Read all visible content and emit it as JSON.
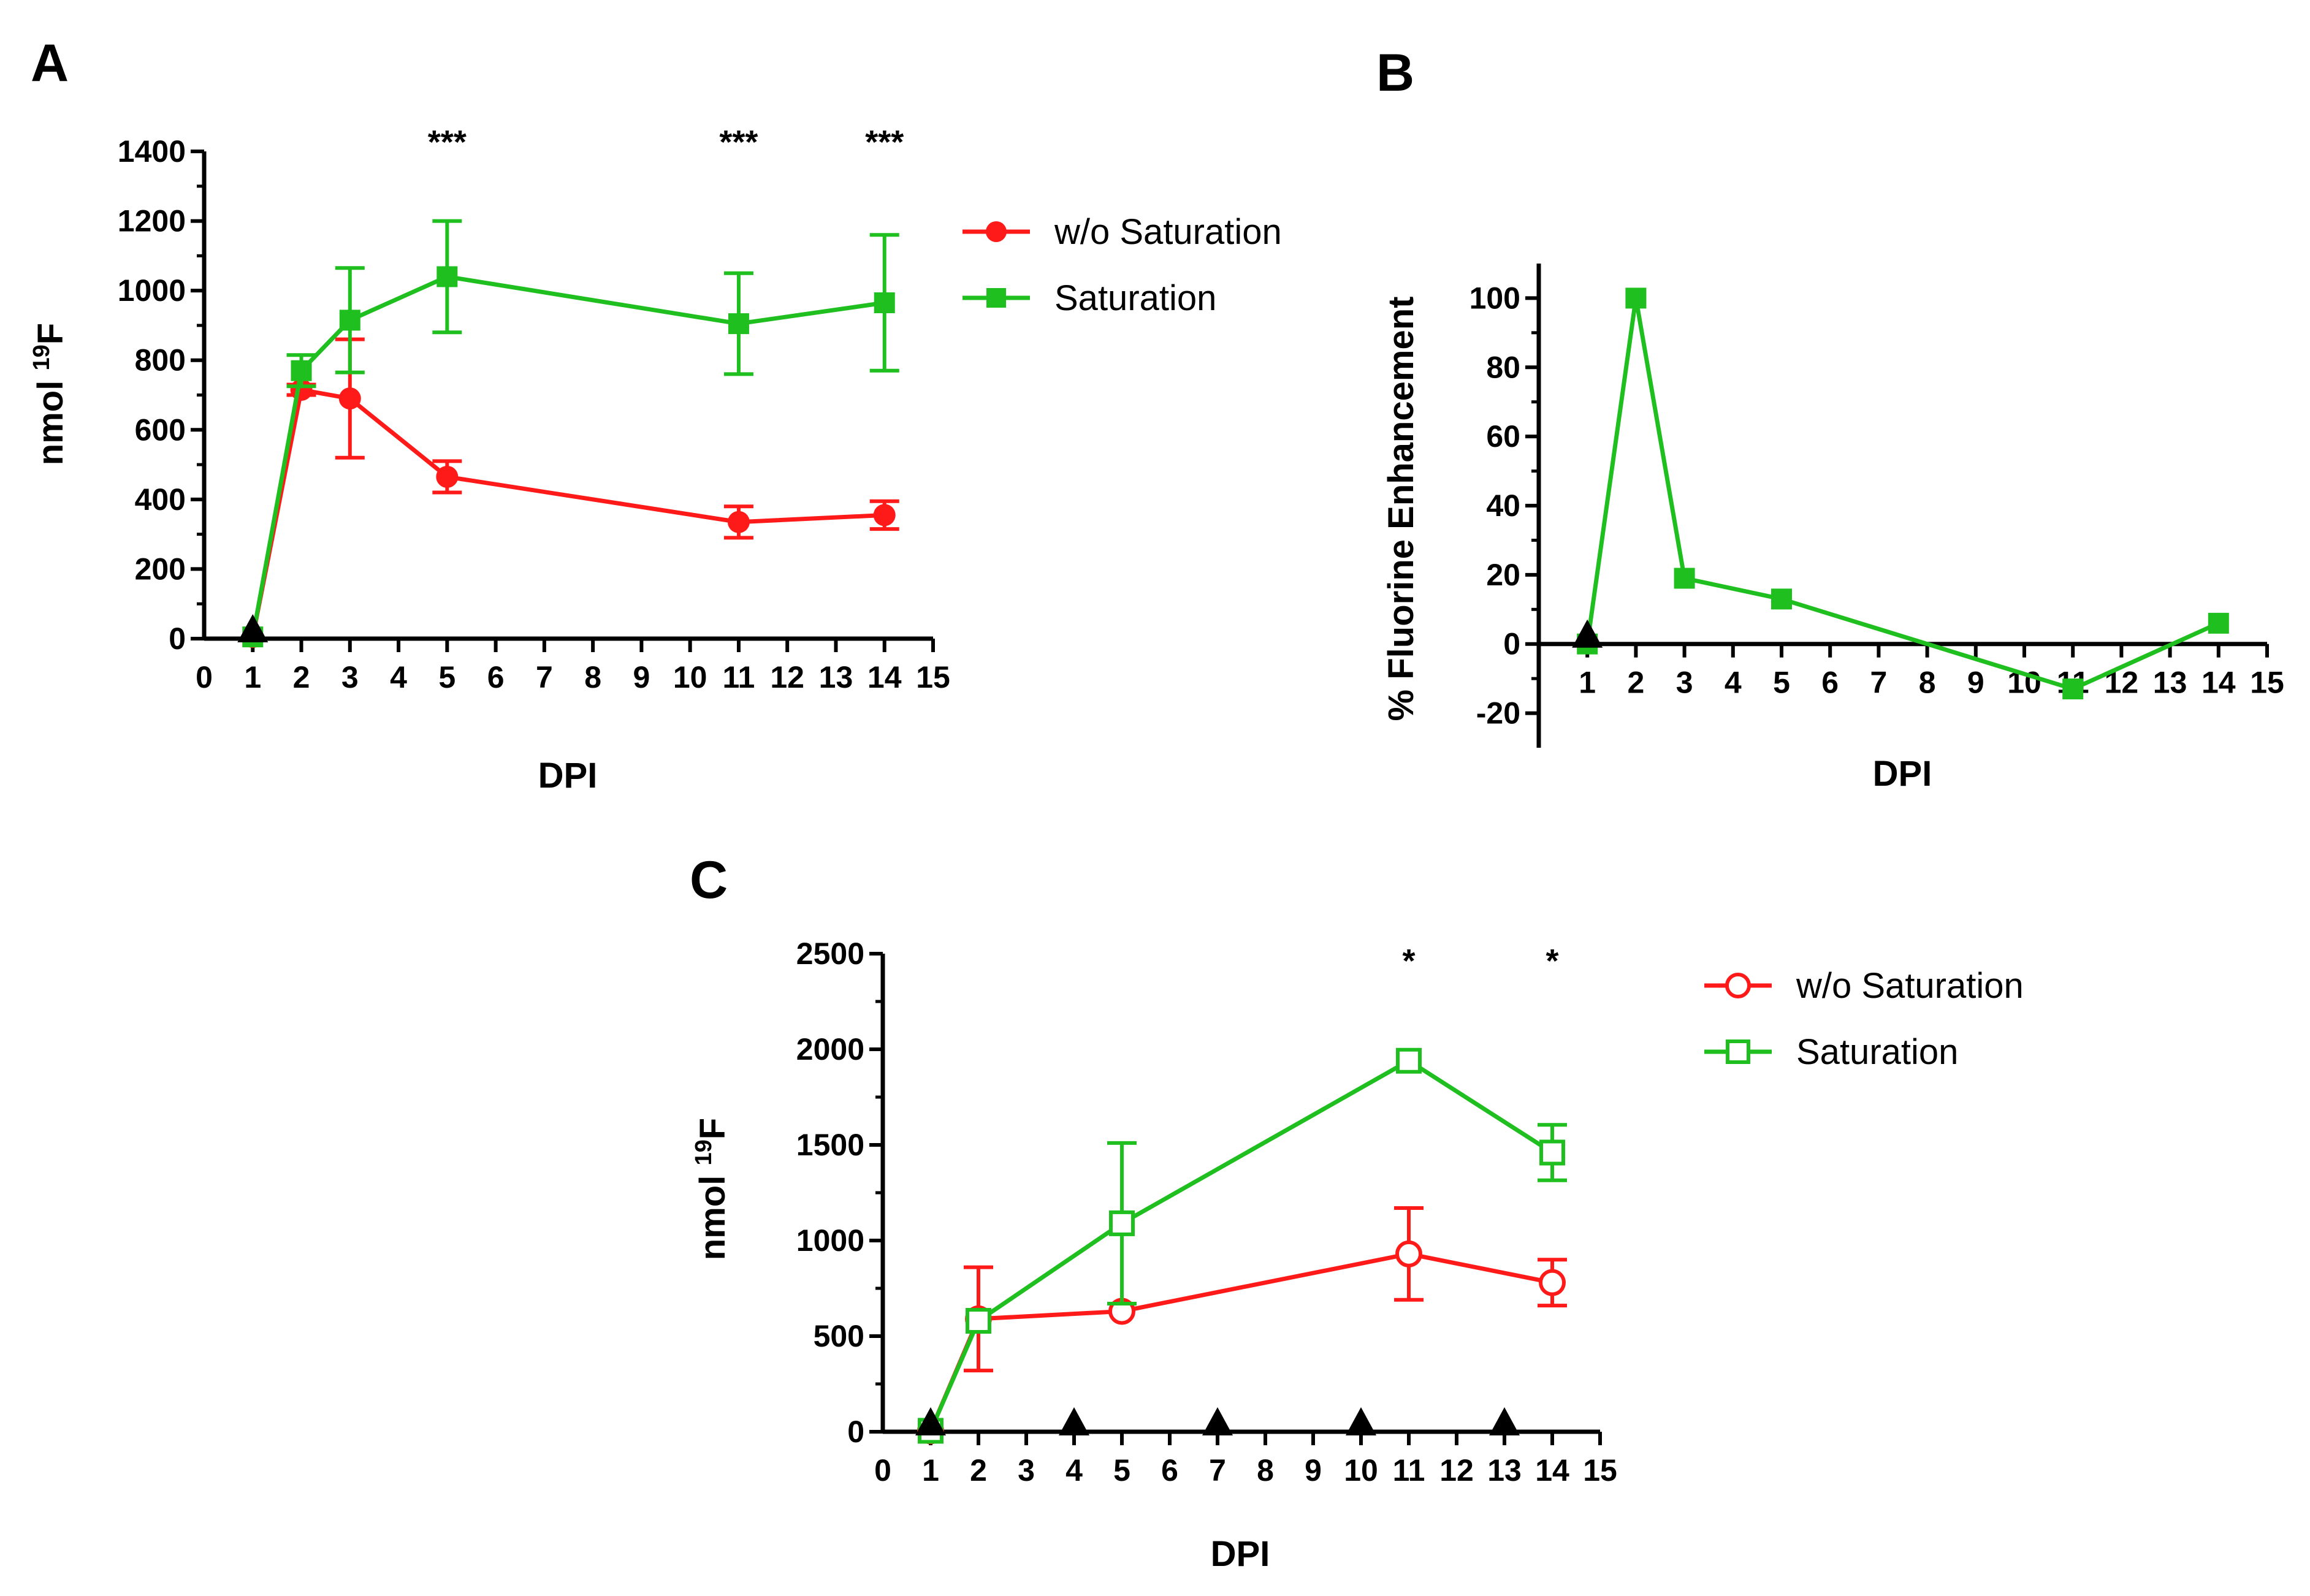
{
  "panels": {
    "a": {
      "letter": "A"
    },
    "b": {
      "letter": "B"
    },
    "c": {
      "letter": "C"
    }
  },
  "colors": {
    "red": "#ff1a1a",
    "green": "#1fbf1f",
    "black": "#000000"
  },
  "chart_data": [
    {
      "id": "A",
      "type": "line",
      "xlabel": "DPI",
      "ylabel_main": "nmol ",
      "ylabel_sup": "19",
      "ylabel_tail": "F",
      "xlim": [
        0,
        15
      ],
      "ylim": [
        0,
        1400
      ],
      "xticks": [
        0,
        1,
        2,
        3,
        4,
        5,
        6,
        7,
        8,
        9,
        10,
        11,
        12,
        13,
        14,
        15
      ],
      "yticks": [
        0,
        200,
        400,
        600,
        800,
        1000,
        1200,
        1400
      ],
      "legend": [
        "w/o Saturation",
        "Saturation"
      ],
      "series": [
        {
          "name": "w/o Saturation",
          "color": "#ff1a1a",
          "marker": "circle-filled",
          "x": [
            1,
            2,
            3,
            5,
            11,
            14
          ],
          "y": [
            5,
            715,
            690,
            465,
            335,
            355
          ],
          "err": [
            0,
            15,
            170,
            45,
            45,
            40
          ]
        },
        {
          "name": "Saturation",
          "color": "#1fbf1f",
          "marker": "square-filled",
          "x": [
            1,
            2,
            3,
            5,
            11,
            14
          ],
          "y": [
            5,
            770,
            915,
            1040,
            905,
            965
          ],
          "err": [
            0,
            45,
            150,
            160,
            145,
            195
          ]
        }
      ],
      "injections": [
        1
      ],
      "significance": [
        {
          "x": 5,
          "label": "***"
        },
        {
          "x": 11,
          "label": "***"
        },
        {
          "x": 14,
          "label": "***"
        }
      ]
    },
    {
      "id": "B",
      "type": "line",
      "xlabel": "DPI",
      "ylabel": "% Fluorine Enhancement",
      "xlim": [
        0,
        15
      ],
      "ylim": [
        -30,
        110
      ],
      "xticks": [
        1,
        2,
        3,
        4,
        5,
        6,
        7,
        8,
        9,
        10,
        11,
        12,
        13,
        14,
        15
      ],
      "yticks": [
        -20,
        0,
        20,
        40,
        60,
        80,
        100
      ],
      "series": [
        {
          "name": "Saturation",
          "color": "#1fbf1f",
          "marker": "square-filled",
          "x": [
            1,
            2,
            3,
            5,
            11,
            14
          ],
          "y": [
            0,
            100,
            19,
            13,
            -13,
            6
          ]
        }
      ],
      "injections": [
        1
      ]
    },
    {
      "id": "C",
      "type": "line",
      "xlabel": "DPI",
      "ylabel_main": "nmol ",
      "ylabel_sup": "19",
      "ylabel_tail": "F",
      "xlim": [
        0,
        15
      ],
      "ylim": [
        0,
        2500
      ],
      "xticks": [
        0,
        1,
        2,
        3,
        4,
        5,
        6,
        7,
        8,
        9,
        10,
        11,
        12,
        13,
        14,
        15
      ],
      "yticks": [
        0,
        500,
        1000,
        1500,
        2000,
        2500
      ],
      "legend": [
        "w/o Saturation",
        "Saturation"
      ],
      "series": [
        {
          "name": "w/o Saturation",
          "color": "#ff1a1a",
          "marker": "circle-open",
          "x": [
            1,
            2,
            5,
            11,
            14
          ],
          "y": [
            5,
            590,
            630,
            930,
            780
          ],
          "err": [
            0,
            270,
            0,
            240,
            120
          ]
        },
        {
          "name": "Saturation",
          "color": "#1fbf1f",
          "marker": "square-open",
          "x": [
            1,
            2,
            5,
            11,
            14
          ],
          "y": [
            5,
            580,
            1090,
            1940,
            1460
          ],
          "err": [
            0,
            0,
            420,
            0,
            145
          ]
        }
      ],
      "injections": [
        1,
        4,
        7,
        10,
        13
      ],
      "significance": [
        {
          "x": 11,
          "label": "*"
        },
        {
          "x": 14,
          "label": "*"
        }
      ]
    }
  ]
}
